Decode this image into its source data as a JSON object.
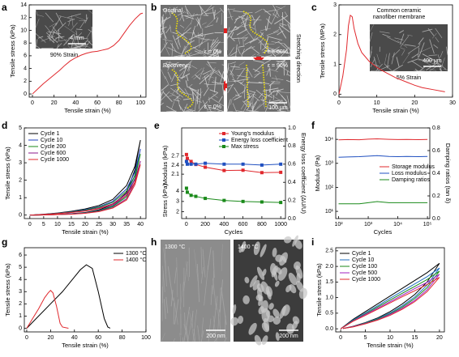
{
  "chart_data": [
    {
      "type": "line",
      "panel_label": "a",
      "xlabel": "Tensile strain (%)",
      "ylabel": "Tensile stress (kPa)",
      "xlim": [
        -3,
        105
      ],
      "xticks": [
        0,
        20,
        40,
        60,
        80,
        100
      ],
      "ylim": [
        -0.5,
        14
      ],
      "yticks": [
        0,
        2,
        4,
        6,
        8,
        10,
        12,
        14
      ],
      "series": [
        {
          "color": "#e0282d",
          "x": [
            0,
            5,
            10,
            15,
            20,
            25,
            30,
            35,
            40,
            45,
            50,
            55,
            60,
            65,
            70,
            75,
            80,
            85,
            90,
            95,
            100,
            102
          ],
          "values": [
            0,
            0.8,
            1.6,
            2.3,
            3.0,
            3.7,
            4.5,
            5.2,
            5.7,
            6.1,
            6.4,
            6.6,
            6.7,
            6.9,
            7.1,
            7.6,
            8.4,
            9.6,
            10.8,
            11.8,
            12.6,
            12.7
          ]
        }
      ],
      "inset": {
        "caption": "90% Strain",
        "scale_bar": "4 mm"
      }
    },
    {
      "type": "line",
      "panel_label": "c",
      "xlabel": "Tensile strain (%)",
      "ylabel": "Tensile stress (MPa)",
      "xlim": [
        0,
        30
      ],
      "xticks": [
        0,
        10,
        20,
        30
      ],
      "ylim": [
        -0.1,
        3
      ],
      "yticks": [
        0,
        1,
        2,
        3
      ],
      "annotation": [
        "Common ceramic",
        "nanofiber membrane"
      ],
      "series": [
        {
          "color": "#e0282d",
          "x": [
            0,
            1,
            2,
            2.5,
            3,
            3.5,
            4,
            5,
            6,
            8,
            10,
            12,
            15,
            18,
            20,
            22,
            25,
            28
          ],
          "values": [
            0,
            0.6,
            1.5,
            2.3,
            2.65,
            2.6,
            2.2,
            1.7,
            1.4,
            1.1,
            0.9,
            0.75,
            0.55,
            0.4,
            0.3,
            0.22,
            0.15,
            0.08
          ]
        }
      ],
      "inset": {
        "caption": "5% Strain",
        "scale_bar": "400 μm"
      }
    },
    {
      "type": "line",
      "panel_label": "d",
      "xlabel": "Tensile strain (%)",
      "ylabel": "Tensile stress (kPa)",
      "xlim": [
        -2,
        42
      ],
      "xticks": [
        0,
        5,
        10,
        15,
        20,
        25,
        30,
        35,
        40
      ],
      "ylim": [
        -0.2,
        5
      ],
      "yticks": [
        0,
        1,
        2,
        3,
        4,
        5
      ],
      "legend": "upper left",
      "series": [
        {
          "name": "Cycle 1",
          "color": "#000000",
          "x": [
            0,
            5,
            10,
            15,
            20,
            25,
            30,
            35,
            38,
            40,
            38,
            35,
            30,
            25,
            20,
            15,
            10,
            5,
            1
          ],
          "values": [
            0,
            0.05,
            0.12,
            0.22,
            0.35,
            0.55,
            0.9,
            1.7,
            2.8,
            4.3,
            2.6,
            1.3,
            0.6,
            0.3,
            0.15,
            0.08,
            0.04,
            0.01,
            0
          ]
        },
        {
          "name": "Cycle 10",
          "color": "#1f3fbf",
          "x": [
            0,
            5,
            10,
            15,
            20,
            25,
            30,
            35,
            38,
            40,
            38,
            35,
            30,
            25,
            20,
            15,
            10,
            5,
            1
          ],
          "values": [
            0,
            0.04,
            0.11,
            0.19,
            0.31,
            0.48,
            0.79,
            1.5,
            2.46,
            3.8,
            2.29,
            1.14,
            0.53,
            0.26,
            0.13,
            0.07,
            0.04,
            0.01,
            0
          ]
        },
        {
          "name": "Cycle 200",
          "color": "#1a8a1a",
          "x": [
            0,
            5,
            10,
            15,
            20,
            25,
            30,
            35,
            38,
            40,
            38,
            35,
            30,
            25,
            20,
            15,
            10,
            5,
            1
          ],
          "values": [
            0,
            0.04,
            0.1,
            0.18,
            0.28,
            0.45,
            0.73,
            1.38,
            2.27,
            3.5,
            2.1,
            1.05,
            0.49,
            0.24,
            0.12,
            0.06,
            0.03,
            0.01,
            0
          ]
        },
        {
          "name": "Cycle 600",
          "color": "#8b1a8b",
          "x": [
            0,
            5,
            10,
            15,
            20,
            25,
            30,
            35,
            38,
            40,
            38,
            35,
            30,
            25,
            20,
            15,
            10,
            5,
            1
          ],
          "values": [
            0,
            0.04,
            0.09,
            0.16,
            0.25,
            0.4,
            0.65,
            1.22,
            2.02,
            3.1,
            1.87,
            0.94,
            0.43,
            0.22,
            0.11,
            0.06,
            0.03,
            0.01,
            0
          ]
        },
        {
          "name": "Cycle 1000",
          "color": "#e0282d",
          "x": [
            0,
            5,
            10,
            15,
            20,
            25,
            30,
            35,
            38,
            40,
            38,
            35,
            30,
            25,
            20,
            15,
            10,
            5,
            1
          ],
          "values": [
            0,
            0.03,
            0.08,
            0.15,
            0.23,
            0.37,
            0.6,
            1.14,
            1.88,
            2.9,
            1.74,
            0.87,
            0.4,
            0.2,
            0.1,
            0.05,
            0.03,
            0.01,
            0
          ]
        }
      ]
    },
    {
      "type": "line",
      "panel_label": "e",
      "xlabel": "Cycles",
      "ylabel": "Modulus (kPa)",
      "ylim": [
        1.95,
        2.85
      ],
      "yticks": [
        2.1,
        2.4,
        2.7
      ],
      "y3label": "Stress (kPa)",
      "y3lim": [
        1.5,
        4.7
      ],
      "y3ticks": [
        2,
        3,
        4
      ],
      "y2label": "Energy loss coefficient (ΔU/U)",
      "y2lim": [
        0,
        1
      ],
      "y2ticks": [
        {
          "value": 0,
          "label": "0.0"
        },
        0.2,
        0.4,
        0.6,
        0.8,
        {
          "value": 1,
          "label": "1.0"
        }
      ],
      "xlim": [
        -50,
        1050
      ],
      "xticks": [
        0,
        200,
        400,
        600,
        800,
        1000
      ],
      "legend": "upper right",
      "series": [
        {
          "name": "Young's modulus",
          "color": "#e0282d",
          "marker": "square",
          "x": [
            1,
            10,
            50,
            100,
            200,
            400,
            600,
            800,
            1000
          ],
          "values": [
            2.75,
            2.62,
            2.52,
            2.42,
            2.33,
            2.22,
            2.23,
            2.15,
            2.16
          ]
        },
        {
          "name": "Energy loss coefficient",
          "color": "#2050c0",
          "marker": "square",
          "axis": "y2",
          "x": [
            1,
            10,
            50,
            100,
            200,
            400,
            600,
            800,
            1000
          ],
          "values": [
            0.63,
            0.6,
            0.6,
            0.6,
            0.61,
            0.6,
            0.6,
            0.59,
            0.6
          ]
        },
        {
          "name": "Max stress",
          "color": "#1a8a1a",
          "marker": "square",
          "axis": "y3",
          "x": [
            1,
            10,
            50,
            100,
            200,
            400,
            600,
            800,
            1000
          ],
          "values": [
            4.3,
            3.9,
            3.6,
            3.5,
            3.3,
            3.1,
            3.0,
            2.95,
            2.9
          ]
        }
      ]
    },
    {
      "type": "line",
      "panel_label": "f",
      "xlabel": "Cycles",
      "ylabel": "Modulus (Pa)",
      "y2label": "Damping ratios (tan δ)",
      "xlog": true,
      "xlim": [
        80,
        120000
      ],
      "xticks": [
        {
          "value": 100,
          "label": "10²"
        },
        {
          "value": 1000,
          "label": "10³"
        },
        {
          "value": 10000,
          "label": "10⁴"
        },
        {
          "value": 100000,
          "label": "10⁵"
        }
      ],
      "ylog": true,
      "ylim": [
        5,
        30000
      ],
      "yticks": [
        {
          "value": 10,
          "label": "10¹"
        },
        {
          "value": 100,
          "label": "10²"
        },
        {
          "value": 1000,
          "label": "10³"
        },
        {
          "value": 10000,
          "label": "10⁴"
        }
      ],
      "y2lim": [
        0,
        0.8
      ],
      "y2ticks": [
        {
          "value": 0,
          "label": "0.0"
        },
        0.2,
        0.4,
        0.6,
        0.8
      ],
      "legend": "center right",
      "series": [
        {
          "name": "Storage modulus",
          "color": "#e0282d",
          "x": [
            100,
            200,
            500,
            1000,
            2000,
            5000,
            10000,
            20000,
            50000,
            100000
          ],
          "values": [
            9500,
            9800,
            9600,
            10200,
            10500,
            10000,
            9800,
            9900,
            9700,
            9900
          ]
        },
        {
          "name": "Loss modulus",
          "color": "#2050c0",
          "x": [
            100,
            200,
            500,
            1000,
            2000,
            5000,
            10000,
            20000,
            50000,
            100000
          ],
          "values": [
            1800,
            1850,
            1900,
            2000,
            2100,
            1950,
            1900,
            1950,
            1900,
            1950
          ]
        },
        {
          "name": "Damping ratios",
          "color": "#1a8a1a",
          "axis": "y2",
          "x": [
            100,
            200,
            500,
            1000,
            2000,
            5000,
            10000,
            20000,
            50000,
            100000
          ],
          "values": [
            0.13,
            0.13,
            0.13,
            0.14,
            0.15,
            0.14,
            0.14,
            0.14,
            0.14,
            0.14
          ]
        }
      ]
    },
    {
      "type": "line",
      "panel_label": "g",
      "xlabel": "Tensile strain (%)",
      "ylabel": "Tensile stress (kPa)",
      "xlim": [
        -2,
        100
      ],
      "xticks": [
        0,
        20,
        40,
        60,
        80,
        100
      ],
      "ylim": [
        -0.3,
        6.6
      ],
      "yticks": [
        0,
        1,
        2,
        3,
        4,
        5,
        6
      ],
      "legend": "upper right",
      "series": [
        {
          "name": "1300 °C",
          "color": "#000000",
          "x": [
            0,
            10,
            20,
            30,
            40,
            45,
            50,
            55,
            60,
            65,
            68,
            70
          ],
          "values": [
            0,
            1.0,
            2.0,
            3.0,
            4.2,
            4.8,
            5.2,
            4.9,
            3.0,
            0.8,
            0.1,
            0
          ]
        },
        {
          "name": "1400 °C",
          "color": "#e0282d",
          "x": [
            0,
            5,
            10,
            15,
            18,
            20,
            22,
            25,
            28,
            30,
            35
          ],
          "values": [
            0,
            0.8,
            1.6,
            2.5,
            2.9,
            3.1,
            2.9,
            1.8,
            0.4,
            0.1,
            0
          ]
        }
      ]
    },
    {
      "type": "line",
      "panel_label": "i",
      "xlabel": "Tensile strain (%)",
      "ylabel": "Tensile stress (kPa)",
      "xlim": [
        -1,
        21
      ],
      "xticks": [
        0,
        5,
        10,
        15,
        20
      ],
      "ylim": [
        -0.1,
        2.6
      ],
      "yticks": [
        {
          "value": 0,
          "label": "0.0"
        },
        0.5,
        {
          "value": 1,
          "label": "1.0"
        },
        1.5,
        {
          "value": 2,
          "label": "2.0"
        },
        2.5
      ],
      "legend": "upper left",
      "series": [
        {
          "name": "Cycle 1",
          "color": "#000000",
          "x": [
            0,
            2.5,
            5,
            7.5,
            10,
            12.5,
            15,
            17.5,
            20,
            17.5,
            15,
            12.5,
            10,
            7.5,
            5,
            2.5,
            0.5
          ],
          "values": [
            0,
            0.3,
            0.55,
            0.8,
            1.05,
            1.3,
            1.55,
            1.8,
            2.1,
            1.5,
            1.1,
            0.8,
            0.55,
            0.35,
            0.2,
            0.08,
            0.01
          ]
        },
        {
          "name": "Cycle 10",
          "color": "#1f6fbf",
          "x": [
            0,
            2.5,
            5,
            7.5,
            10,
            12.5,
            15,
            17.5,
            20,
            17.5,
            15,
            12.5,
            10,
            7.5,
            5,
            2.5,
            0.5
          ],
          "values": [
            0,
            0.28,
            0.51,
            0.74,
            0.98,
            1.21,
            1.44,
            1.67,
            1.95,
            1.4,
            1.02,
            0.74,
            0.51,
            0.33,
            0.19,
            0.07,
            0.01
          ]
        },
        {
          "name": "Cycle 100",
          "color": "#1a8a1a",
          "x": [
            0,
            2.5,
            5,
            7.5,
            10,
            12.5,
            15,
            17.5,
            20,
            17.5,
            15,
            12.5,
            10,
            7.5,
            5,
            2.5,
            0.5
          ],
          "values": [
            0,
            0.26,
            0.48,
            0.7,
            0.92,
            1.14,
            1.36,
            1.58,
            1.85,
            1.32,
            0.97,
            0.7,
            0.48,
            0.31,
            0.18,
            0.07,
            0.01
          ]
        },
        {
          "name": "Cycle 500",
          "color": "#a020c0",
          "x": [
            0,
            2.5,
            5,
            7.5,
            10,
            12.5,
            15,
            17.5,
            20,
            17.5,
            15,
            12.5,
            10,
            7.5,
            5,
            2.5,
            0.5
          ],
          "values": [
            0,
            0.25,
            0.46,
            0.66,
            0.87,
            1.08,
            1.29,
            1.49,
            1.75,
            1.25,
            0.91,
            0.66,
            0.46,
            0.29,
            0.17,
            0.07,
            0.01
          ]
        },
        {
          "name": "Cycle 1000",
          "color": "#e0282d",
          "x": [
            0,
            2.5,
            5,
            7.5,
            10,
            12.5,
            15,
            17.5,
            20,
            17.5,
            15,
            12.5,
            10,
            7.5,
            5,
            2.5,
            0.5
          ],
          "values": [
            0,
            0.24,
            0.43,
            0.63,
            0.83,
            1.03,
            1.22,
            1.42,
            1.65,
            1.19,
            0.87,
            0.63,
            0.43,
            0.28,
            0.16,
            0.06,
            0.01
          ]
        }
      ]
    }
  ],
  "image_panels": [
    {
      "panel_label": "b",
      "tiles": [
        {
          "caption": "Original",
          "strain": "ε = 0%"
        },
        {
          "strain": "ε = 60%"
        },
        {
          "caption": "Recovery",
          "strain": "ε = 0%"
        },
        {
          "strain": "ε = 90%"
        }
      ],
      "scale_bar": "100 μm",
      "side_label": "Stretching direction"
    },
    {
      "panel_label": "h",
      "tiles": [
        {
          "caption": "1300 °C",
          "scale_bar": "200 nm"
        },
        {
          "caption": "1400 °C",
          "scale_bar": "200 nm"
        }
      ]
    }
  ]
}
